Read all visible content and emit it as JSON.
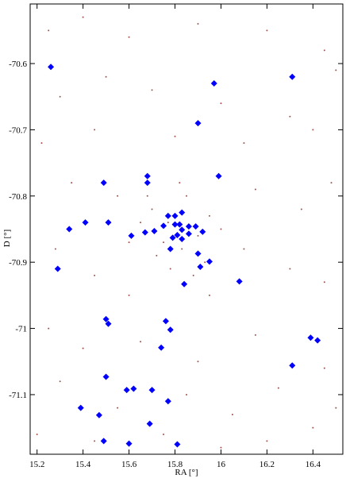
{
  "chart_data": {
    "type": "scatter",
    "x_label": "RA [°]",
    "y_label": "D [°]",
    "xlim": [
      15.17,
      16.53
    ],
    "ylim": [
      -71.19,
      -70.51
    ],
    "xticks": [
      15.2,
      15.4,
      15.6,
      15.8,
      16,
      16.2,
      16.4
    ],
    "yticks": [
      -70.6,
      -70.7,
      -70.8,
      -70.9,
      -71,
      -71.1
    ],
    "grid": false,
    "series": [
      {
        "color": "#a0524a",
        "marker": "dot",
        "x": [
          15.25,
          15.4,
          15.6,
          15.9,
          16.2,
          16.45,
          15.3,
          15.5,
          15.7,
          16.0,
          16.3,
          16.5,
          15.22,
          15.45,
          15.8,
          16.1,
          16.4,
          15.35,
          15.55,
          16.15,
          16.35,
          16.48,
          15.28,
          15.45,
          16.1,
          16.3,
          16.45,
          15.6,
          15.95,
          15.25,
          15.4,
          15.65,
          15.9,
          16.15,
          16.45,
          15.3,
          15.55,
          15.85,
          16.05,
          16.25,
          16.4,
          15.2,
          15.45,
          15.75,
          16.0,
          16.2,
          16.5,
          15.7,
          15.75,
          15.85,
          15.9,
          15.78,
          15.65,
          15.95,
          15.82,
          15.72,
          15.88,
          15.6,
          16.0,
          15.77,
          15.83,
          15.68,
          15.93
        ],
        "y": [
          -70.55,
          -70.53,
          -70.56,
          -70.54,
          -70.55,
          -70.58,
          -70.65,
          -70.62,
          -70.64,
          -70.66,
          -70.68,
          -70.61,
          -70.72,
          -70.7,
          -70.71,
          -70.72,
          -70.7,
          -70.78,
          -70.8,
          -70.79,
          -70.82,
          -70.78,
          -70.88,
          -70.92,
          -70.88,
          -70.91,
          -70.93,
          -70.95,
          -70.95,
          -71.0,
          -71.03,
          -71.02,
          -71.05,
          -71.01,
          -71.06,
          -71.08,
          -71.12,
          -71.1,
          -71.13,
          -71.09,
          -71.15,
          -71.16,
          -71.17,
          -71.16,
          -71.18,
          -71.17,
          -71.12,
          -70.82,
          -70.87,
          -70.8,
          -70.86,
          -70.91,
          -70.84,
          -70.83,
          -70.78,
          -70.89,
          -70.92,
          -70.87,
          -70.85,
          -70.84,
          -70.88,
          -70.8,
          -70.9
        ]
      },
      {
        "color": "#0000ff",
        "marker": "diamond",
        "x": [
          15.26,
          15.97,
          16.31,
          15.9,
          15.99,
          15.68,
          15.68,
          15.49,
          15.41,
          15.34,
          15.51,
          15.61,
          15.67,
          15.71,
          15.75,
          15.77,
          15.8,
          15.83,
          15.8,
          15.82,
          15.83,
          15.86,
          15.81,
          15.79,
          15.83,
          15.86,
          15.89,
          15.92,
          15.78,
          15.9,
          15.91,
          15.95,
          16.08,
          15.84,
          15.29,
          15.5,
          15.51,
          15.76,
          15.78,
          15.74,
          16.39,
          16.42,
          16.31,
          15.5,
          15.39,
          15.47,
          15.59,
          15.62,
          15.7,
          15.77,
          15.69,
          15.49,
          15.6,
          15.81
        ],
        "y": [
          -70.605,
          -70.63,
          -70.62,
          -70.69,
          -70.77,
          -70.77,
          -70.78,
          -70.78,
          -70.84,
          -70.85,
          -70.84,
          -70.86,
          -70.855,
          -70.853,
          -70.845,
          -70.83,
          -70.83,
          -70.825,
          -70.843,
          -70.843,
          -70.851,
          -70.846,
          -70.859,
          -70.863,
          -70.865,
          -70.857,
          -70.846,
          -70.854,
          -70.88,
          -70.887,
          -70.907,
          -70.899,
          -70.929,
          -70.933,
          -70.91,
          -70.986,
          -70.993,
          -70.989,
          -71.002,
          -71.029,
          -71.014,
          -71.018,
          -71.056,
          -71.073,
          -71.12,
          -71.131,
          -71.093,
          -71.091,
          -71.093,
          -71.11,
          -71.144,
          -71.17,
          -71.174,
          -71.175
        ]
      }
    ]
  }
}
